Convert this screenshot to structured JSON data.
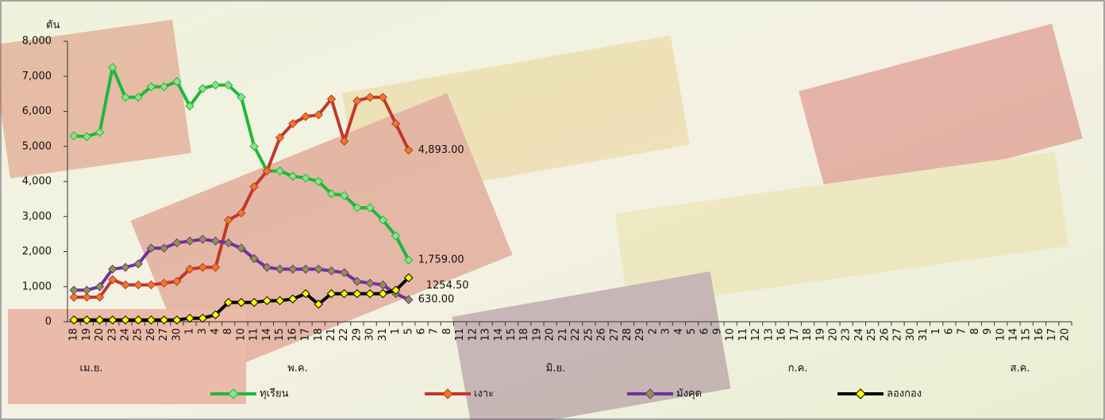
{
  "chart_data": {
    "type": "line",
    "y_label": "ตัน",
    "categories": [
      "18",
      "19",
      "20",
      "23",
      "24",
      "25",
      "26",
      "27",
      "30",
      "1",
      "3",
      "4",
      "8",
      "10",
      "11",
      "14",
      "15",
      "16",
      "17",
      "18",
      "21",
      "22",
      "29",
      "30",
      "31",
      "1",
      "5",
      "6",
      "7",
      "8",
      "11",
      "12",
      "13",
      "14",
      "15",
      "18",
      "19",
      "20",
      "21",
      "22",
      "25",
      "26",
      "27",
      "28",
      "29",
      "2",
      "3",
      "4",
      "5",
      "6",
      "9",
      "10",
      "11",
      "12",
      "13",
      "16",
      "17",
      "18",
      "19",
      "20",
      "23",
      "24",
      "25",
      "26",
      "27",
      "30",
      "31",
      "1",
      "6",
      "7",
      "8",
      "9",
      "10",
      "14",
      "15",
      "16",
      "17",
      "20"
    ],
    "months": [
      "เม.ย.",
      "พ.ค.",
      "มิ.ย.",
      "ก.ค.",
      "ส.ค."
    ],
    "ylim": [
      0,
      8000
    ],
    "yticks": [
      0,
      {
        "value": 1000,
        "label": "1,000"
      },
      {
        "value": 2000,
        "label": "2,000"
      },
      {
        "value": 3000,
        "label": "3,000"
      },
      {
        "value": 4000,
        "label": "4,000"
      },
      {
        "value": 5000,
        "label": "5,000"
      },
      {
        "value": 6000,
        "label": "6,000"
      },
      {
        "value": 7000,
        "label": "7,000"
      },
      {
        "value": 8000,
        "label": "8,000"
      }
    ],
    "series": [
      {
        "name": "ทุเรียน",
        "color": "#1fb83c",
        "marker_color": "#8fe08a",
        "values": [
          5300,
          5280,
          5400,
          7250,
          6400,
          6400,
          6700,
          6700,
          6850,
          6150,
          6650,
          6750,
          6750,
          6400,
          5000,
          4300,
          4300,
          4150,
          4100,
          4000,
          3650,
          3600,
          3250,
          3250,
          2900,
          2450,
          1759,
          null,
          null,
          null,
          null,
          null,
          null,
          null,
          null,
          null,
          null,
          null,
          null,
          null,
          null,
          null,
          null,
          null,
          null,
          null,
          null,
          null,
          null,
          null,
          null,
          null,
          null,
          null,
          null,
          null,
          null,
          null,
          null,
          null,
          null,
          null,
          null,
          null,
          null,
          null,
          null,
          null,
          null,
          null,
          null,
          null,
          null,
          null,
          null,
          null,
          null,
          null
        ],
        "value_labels": [
          null,
          null,
          null,
          null,
          null,
          null,
          null,
          null,
          null,
          null,
          null,
          null,
          null,
          null,
          null,
          null,
          null,
          null,
          null,
          null,
          null,
          null,
          null,
          null,
          null,
          null,
          "1,759.00",
          null,
          null,
          null,
          null,
          null,
          null,
          null,
          null,
          null,
          null,
          null,
          null,
          null,
          null,
          null,
          null,
          null,
          null,
          null,
          null,
          null,
          null,
          null,
          null,
          null,
          null,
          null,
          null,
          null,
          null,
          null,
          null,
          null,
          null,
          null,
          null,
          null,
          null,
          null,
          null,
          null,
          null,
          null,
          null,
          null,
          null,
          null,
          null,
          null,
          null,
          null
        ]
      },
      {
        "name": "เงาะ",
        "color": "#c0392b",
        "marker_color": "#ee7a22",
        "values": [
          700,
          700,
          700,
          1200,
          1050,
          1050,
          1050,
          1100,
          1150,
          1500,
          1550,
          1550,
          2900,
          3100,
          3850,
          4300,
          5250,
          5650,
          5850,
          5900,
          6350,
          5150,
          6300,
          6400,
          6400,
          5650,
          4893,
          null,
          null,
          null,
          null,
          null,
          null,
          null,
          null,
          null,
          null,
          null,
          null,
          null,
          null,
          null,
          null,
          null,
          null,
          null,
          null,
          null,
          null,
          null,
          null,
          null,
          null,
          null,
          null,
          null,
          null,
          null,
          null,
          null,
          null,
          null,
          null,
          null,
          null,
          null,
          null,
          null,
          null,
          null,
          null,
          null,
          null,
          null,
          null,
          null,
          null,
          null
        ],
        "value_labels": [
          null,
          null,
          null,
          null,
          null,
          null,
          null,
          null,
          null,
          null,
          null,
          null,
          null,
          null,
          null,
          null,
          null,
          null,
          null,
          null,
          null,
          null,
          null,
          null,
          null,
          null,
          "4,893.00",
          null,
          null,
          null,
          null,
          null,
          null,
          null,
          null,
          null,
          null,
          null,
          null,
          null,
          null,
          null,
          null,
          null,
          null,
          null,
          null,
          null,
          null,
          null,
          null,
          null,
          null,
          null,
          null,
          null,
          null,
          null,
          null,
          null,
          null,
          null,
          null,
          null,
          null,
          null,
          null,
          null,
          null,
          null,
          null,
          null,
          null,
          null,
          null,
          null,
          null,
          null
        ]
      },
      {
        "name": "มังคุด",
        "color": "#7030a0",
        "marker_color": "#8a9a3a",
        "values": [
          900,
          900,
          1000,
          1500,
          1550,
          1650,
          2100,
          2100,
          2250,
          2300,
          2350,
          2300,
          2250,
          2100,
          1800,
          1550,
          1500,
          1500,
          1500,
          1500,
          1450,
          1400,
          1150,
          1100,
          1050,
          800,
          630,
          null,
          null,
          null,
          null,
          null,
          null,
          null,
          null,
          null,
          null,
          null,
          null,
          null,
          null,
          null,
          null,
          null,
          null,
          null,
          null,
          null,
          null,
          null,
          null,
          null,
          null,
          null,
          null,
          null,
          null,
          null,
          null,
          null,
          null,
          null,
          null,
          null,
          null,
          null,
          null,
          null,
          null,
          null,
          null,
          null,
          null,
          null,
          null,
          null,
          null,
          null
        ],
        "value_labels": [
          null,
          null,
          null,
          null,
          null,
          null,
          null,
          null,
          null,
          null,
          null,
          null,
          null,
          null,
          null,
          null,
          null,
          null,
          null,
          null,
          null,
          null,
          null,
          null,
          null,
          null,
          "630.00",
          null,
          null,
          null,
          null,
          null,
          null,
          null,
          null,
          null,
          null,
          null,
          null,
          null,
          null,
          null,
          null,
          null,
          null,
          null,
          null,
          null,
          null,
          null,
          null,
          null,
          null,
          null,
          null,
          null,
          null,
          null,
          null,
          null,
          null,
          null,
          null,
          null,
          null,
          null,
          null,
          null,
          null,
          null,
          null,
          null,
          null,
          null,
          null,
          null,
          null,
          null
        ]
      },
      {
        "name": "ลองกอง",
        "color": "#000000",
        "marker_color": "#ffff00",
        "values": [
          50,
          50,
          50,
          50,
          50,
          50,
          50,
          50,
          50,
          100,
          100,
          200,
          550,
          550,
          550,
          600,
          600,
          650,
          800,
          500,
          800,
          800,
          800,
          800,
          800,
          900,
          1254.5,
          null,
          null,
          null,
          null,
          null,
          null,
          null,
          null,
          null,
          null,
          null,
          null,
          null,
          null,
          null,
          null,
          null,
          null,
          null,
          null,
          null,
          null,
          null,
          null,
          null,
          null,
          null,
          null,
          null,
          null,
          null,
          null,
          null,
          null,
          null,
          null,
          null,
          null,
          null,
          null,
          null,
          null,
          null,
          null,
          null,
          null,
          null,
          null,
          null,
          null,
          null
        ],
        "value_labels": [
          null,
          null,
          null,
          null,
          null,
          null,
          null,
          null,
          null,
          null,
          null,
          null,
          null,
          null,
          null,
          null,
          null,
          null,
          null,
          null,
          null,
          null,
          null,
          null,
          null,
          null,
          "1254.50",
          null,
          null,
          null,
          null,
          null,
          null,
          null,
          null,
          null,
          null,
          null,
          null,
          null,
          null,
          null,
          null,
          null,
          null,
          null,
          null,
          null,
          null,
          null,
          null,
          null,
          null,
          null,
          null,
          null,
          null,
          null,
          null,
          null,
          null,
          null,
          null,
          null,
          null,
          null,
          null,
          null,
          null,
          null,
          null,
          null,
          null,
          null,
          null,
          null,
          null,
          null
        ]
      }
    ]
  }
}
